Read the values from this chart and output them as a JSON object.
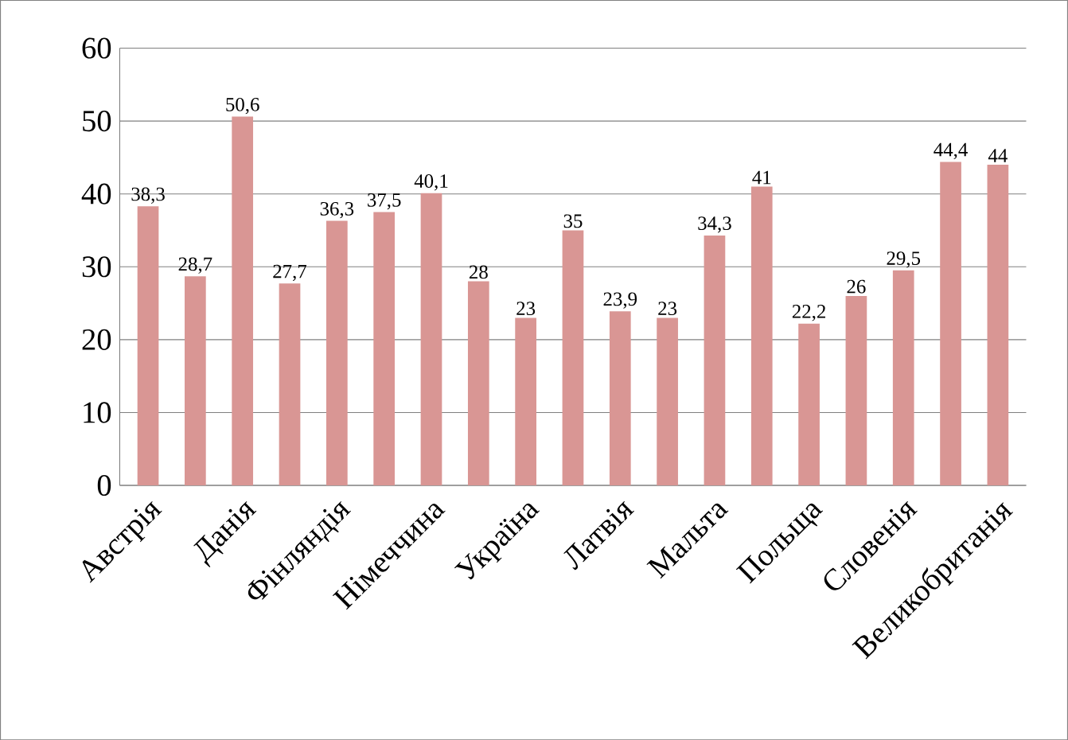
{
  "chart_data": {
    "type": "bar",
    "categories": [
      "Австрія",
      null,
      "Данія",
      null,
      "Фінляндія",
      null,
      "Німеччина",
      null,
      "Україна",
      null,
      "Латвія",
      null,
      "Мальта",
      null,
      "Польща",
      null,
      "Словенія",
      null,
      "Великобританія"
    ],
    "values": [
      38.3,
      28.7,
      50.6,
      27.7,
      36.3,
      37.5,
      40.1,
      28,
      23,
      35,
      23.9,
      23,
      34.3,
      41,
      22.2,
      26,
      29.5,
      44.4,
      44
    ],
    "value_labels": [
      "38,3",
      "28,7",
      "50,6",
      "27,7",
      "36,3",
      "37,5",
      "40,1",
      "28",
      "23",
      "35",
      "23,9",
      "23",
      "34,3",
      "41",
      "22,2",
      "26",
      "29,5",
      "44,4",
      "44"
    ],
    "color": "#d99694",
    "ylim": [
      0,
      60
    ],
    "yticks": [
      0,
      10,
      20,
      30,
      40,
      50,
      60
    ],
    "grid": "y"
  }
}
